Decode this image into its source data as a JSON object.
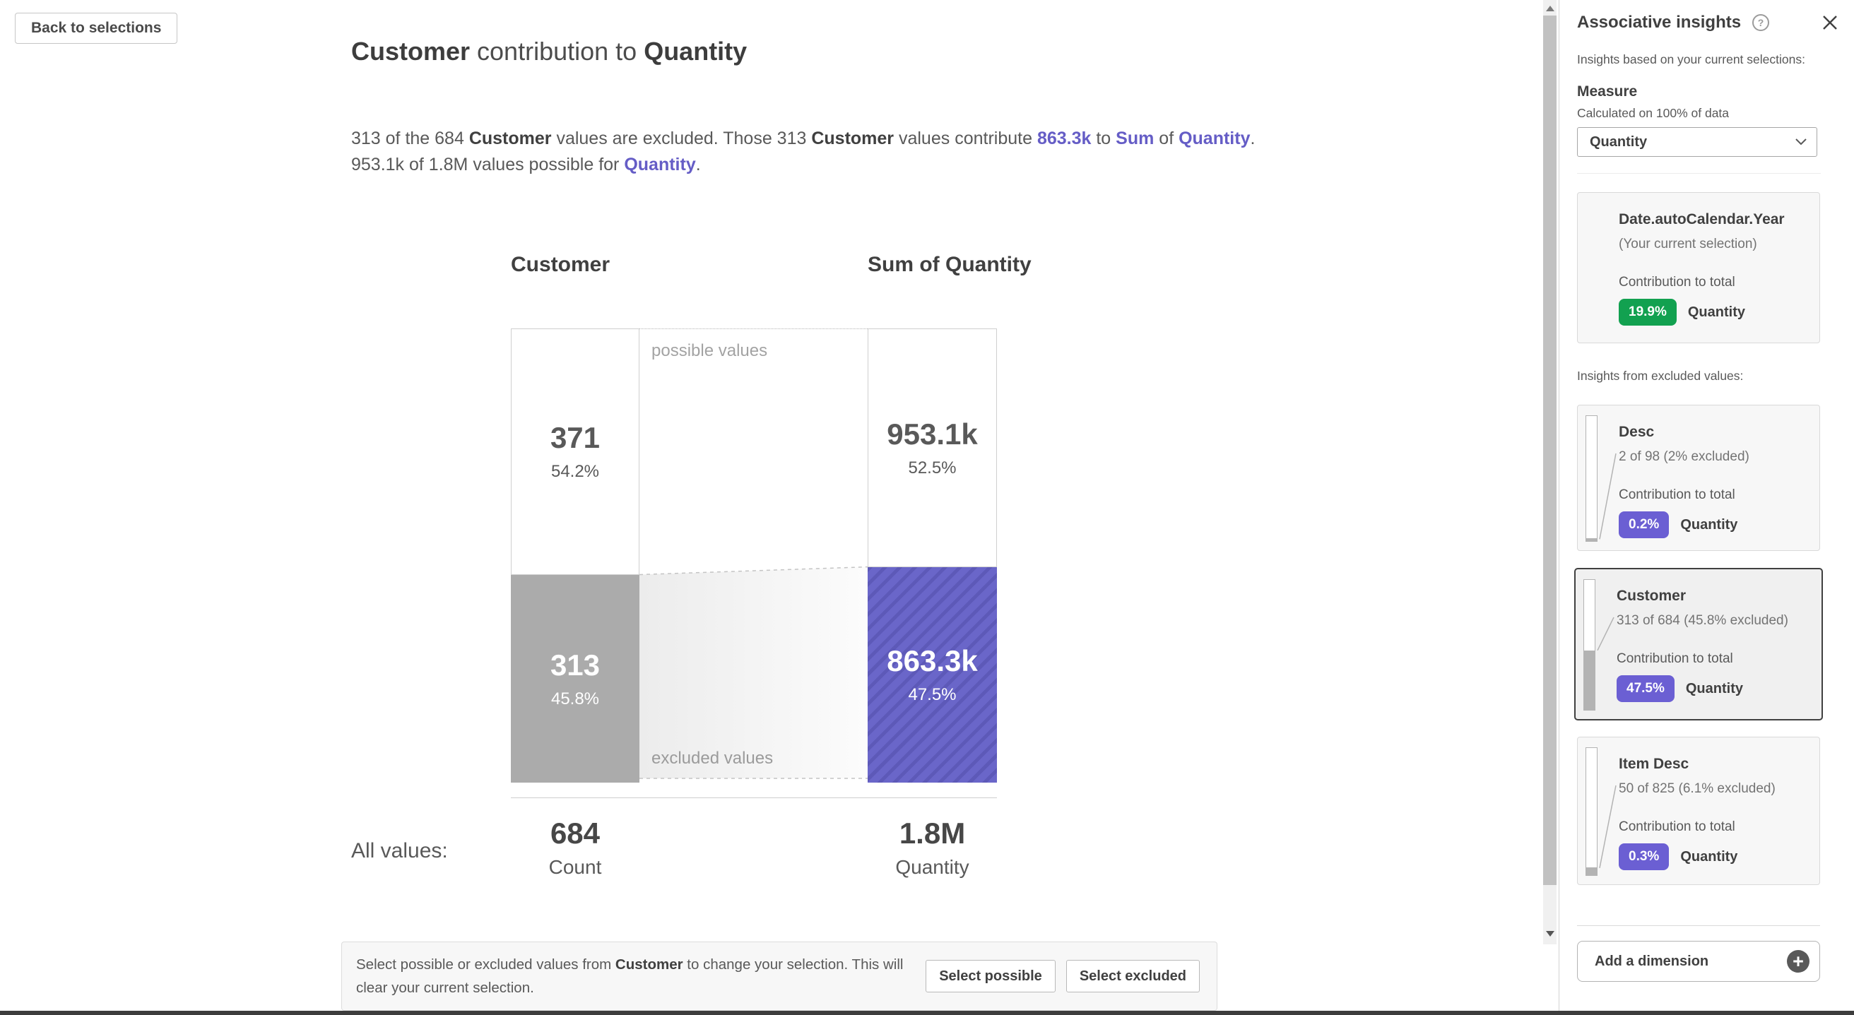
{
  "back_button_label": "Back to selections",
  "main": {
    "title_segments": [
      {
        "t": "Customer",
        "s": "bold"
      },
      {
        "t": " contribution to ",
        "s": ""
      },
      {
        "t": "Quantity",
        "s": "bold"
      }
    ],
    "description_segments": [
      {
        "t": "313 of the 684 ",
        "s": ""
      },
      {
        "t": "Customer",
        "s": "bold"
      },
      {
        "t": " values are excluded. Those 313 ",
        "s": ""
      },
      {
        "t": "Customer",
        "s": "bold"
      },
      {
        "t": " values contribute ",
        "s": ""
      },
      {
        "t": "863.3k",
        "s": "link"
      },
      {
        "t": " to ",
        "s": ""
      },
      {
        "t": "Sum",
        "s": "link"
      },
      {
        "t": " of ",
        "s": ""
      },
      {
        "t": "Quantity",
        "s": "link"
      },
      {
        "t": ". 953.1k of 1.8M values possible for ",
        "s": ""
      },
      {
        "t": "Quantity",
        "s": "link"
      },
      {
        "t": ".",
        "s": ""
      }
    ],
    "chart": {
      "type": "table",
      "left_header": "Customer",
      "right_header": "Sum of Quantity",
      "possible_label": "possible values",
      "excluded_label": "excluded values",
      "left_bar": {
        "possible_value": "371",
        "possible_pct_label": "54.2%",
        "possible_pct": 54.2,
        "excluded_value": "313",
        "excluded_pct_label": "45.8%",
        "excluded_pct": 45.8
      },
      "right_bar": {
        "possible_value": "953.1k",
        "possible_pct_label": "52.5%",
        "possible_pct": 52.5,
        "excluded_value": "863.3k",
        "excluded_pct_label": "47.5%",
        "excluded_pct": 47.5
      },
      "all_values_label": "All values:",
      "left_total": {
        "value": "684",
        "label": "Count"
      },
      "right_total": {
        "value": "1.8M",
        "label": "Quantity"
      }
    },
    "banner": {
      "message_segments": [
        {
          "t": "Select possible or excluded values from ",
          "s": ""
        },
        {
          "t": "Customer",
          "s": "bold"
        },
        {
          "t": " to change your selection. This will clear your current selection.",
          "s": ""
        }
      ],
      "select_possible_label": "Select possible",
      "select_excluded_label": "Select excluded"
    }
  },
  "panel": {
    "title": "Associative insights",
    "help_icon": "?",
    "subtitle": "Insights based on your current selections:",
    "measure_label": "Measure",
    "measure_note": "Calculated on 100% of data",
    "measure_value": "Quantity",
    "excluded_section_label": "Insights from excluded values:",
    "cards": [
      {
        "title": "Date.autoCalendar.Year",
        "note": "(Your current selection)",
        "contribution_label": "Contribution to total",
        "badge": "19.9%",
        "badge_color": "#12a150",
        "measure": "Quantity"
      },
      {
        "title": "Desc",
        "note": "2 of 98 (2% excluded)",
        "contribution_label": "Contribution to total",
        "badge": "0.2%",
        "badge_color": "#6b5fd3",
        "measure": "Quantity",
        "excluded_pct": 2
      },
      {
        "title": "Customer",
        "note": "313 of 684 (45.8% excluded)",
        "contribution_label": "Contribution to total",
        "badge": "47.5%",
        "badge_color": "#6b5fd3",
        "measure": "Quantity",
        "excluded_pct": 45.8,
        "selected": true
      },
      {
        "title": "Item Desc",
        "note": "50 of 825 (6.1% excluded)",
        "contribution_label": "Contribution to total",
        "badge": "0.3%",
        "badge_color": "#6b5fd3",
        "measure": "Quantity",
        "excluded_pct": 6.1
      }
    ],
    "add_dimension_label": "Add a dimension",
    "plus_icon": "+"
  },
  "colors": {
    "accent_purple": "#6a66c9",
    "purple_stripe": "#5d59b8",
    "excluded_gray": "#ababab",
    "badge_green": "#12a150",
    "badge_purple": "#6b5fd3",
    "link_purple": "#655dc6"
  }
}
